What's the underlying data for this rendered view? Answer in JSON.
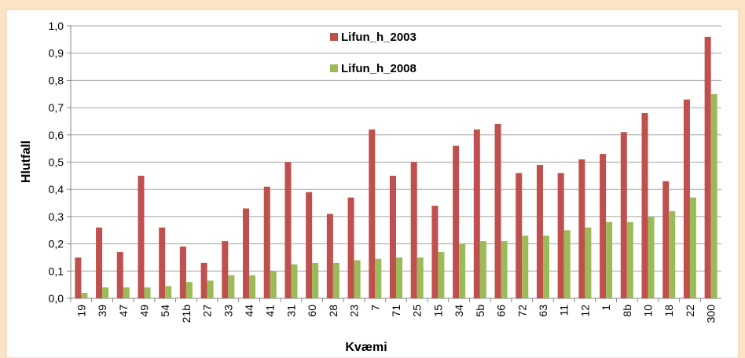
{
  "chart_data": {
    "type": "bar",
    "x_label": "Kvæmi",
    "y_label": "Hlutfall",
    "categories": [
      "19",
      "39",
      "47",
      "49",
      "54",
      "21b",
      "27",
      "33",
      "44",
      "41",
      "31",
      "60",
      "28",
      "23",
      "7",
      "71",
      "25",
      "15",
      "34",
      "5b",
      "66",
      "72",
      "63",
      "11",
      "12",
      "1",
      "8b",
      "10",
      "18",
      "22",
      "300"
    ],
    "series": [
      {
        "name": "Lifun_h_2003",
        "color": "#c0504d",
        "values": [
          0.15,
          0.26,
          0.17,
          0.45,
          0.26,
          0.19,
          0.13,
          0.21,
          0.33,
          0.41,
          0.5,
          0.39,
          0.31,
          0.37,
          0.62,
          0.45,
          0.5,
          0.34,
          0.56,
          0.62,
          0.64,
          0.46,
          0.49,
          0.46,
          0.51,
          0.53,
          0.61,
          0.68,
          0.43,
          0.73,
          0.96
        ]
      },
      {
        "name": "Lifun_h_2008",
        "color": "#9bbb59",
        "values": [
          0.02,
          0.04,
          0.04,
          0.04,
          0.045,
          0.06,
          0.065,
          0.085,
          0.085,
          0.1,
          0.125,
          0.13,
          0.13,
          0.14,
          0.145,
          0.15,
          0.15,
          0.17,
          0.2,
          0.21,
          0.21,
          0.23,
          0.23,
          0.25,
          0.26,
          0.28,
          0.28,
          0.3,
          0.32,
          0.37,
          0.75
        ]
      }
    ],
    "ylim": [
      0,
      1
    ],
    "yticks": [
      {
        "value": 0,
        "label": "0,0"
      },
      {
        "value": 0.1,
        "label": "0,1"
      },
      {
        "value": 0.2,
        "label": "0,2"
      },
      {
        "value": 0.3,
        "label": "0,3"
      },
      {
        "value": 0.4,
        "label": "0,4"
      },
      {
        "value": 0.5,
        "label": "0,5"
      },
      {
        "value": 0.6,
        "label": "0,6"
      },
      {
        "value": 0.7,
        "label": "0,7"
      },
      {
        "value": 0.8,
        "label": "0,8"
      },
      {
        "value": 0.9,
        "label": "0,9"
      },
      {
        "value": 1,
        "label": "1,0"
      }
    ],
    "grid": true
  }
}
